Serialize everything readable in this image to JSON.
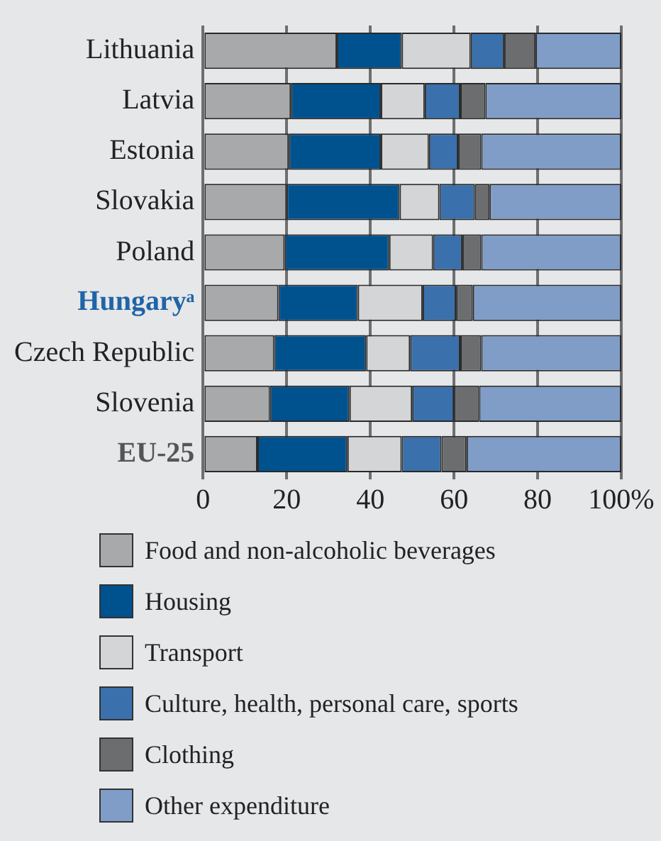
{
  "chart_data": {
    "type": "bar",
    "orientation": "horizontal",
    "stacked": true,
    "categories": [
      "Lithuania",
      "Latvia",
      "Estonia",
      "Slovakia",
      "Poland",
      "Hungaryᵃ",
      "Czech Republic",
      "Slovenia",
      "EU-25"
    ],
    "series": [
      {
        "name": "Food and non-alcoholic beverages",
        "color": "#a8a9ab",
        "values": [
          32,
          21,
          20.5,
          20,
          19.5,
          18,
          17,
          16,
          13
        ]
      },
      {
        "name": "Housing",
        "color": "#00528f",
        "values": [
          15.5,
          21.5,
          22,
          27,
          25,
          19,
          22,
          19,
          21.5
        ]
      },
      {
        "name": "Transport",
        "color": "#d4d5d7",
        "values": [
          16.5,
          10.5,
          11.5,
          9.5,
          10.5,
          15.5,
          10.5,
          15,
          13
        ]
      },
      {
        "name": "Culture, health, personal care, sports",
        "color": "#3a70ac",
        "values": [
          8,
          8.5,
          7,
          8.5,
          7,
          8,
          12,
          10,
          9.5
        ]
      },
      {
        "name": "Clothing",
        "color": "#6c6d6f",
        "values": [
          7.5,
          6,
          5.5,
          3.5,
          4.5,
          4,
          5,
          6,
          6
        ]
      },
      {
        "name": "Other expenditure",
        "color": "#809dc8",
        "values": [
          20.5,
          32.5,
          33.5,
          31.5,
          33.5,
          35.5,
          33.5,
          34,
          37
        ]
      }
    ],
    "xlim": [
      0,
      100
    ],
    "xticks": [
      0,
      20,
      40,
      60,
      80,
      {
        "value": 100,
        "label": "100%"
      }
    ],
    "grid": "x",
    "legend": "bottom"
  }
}
